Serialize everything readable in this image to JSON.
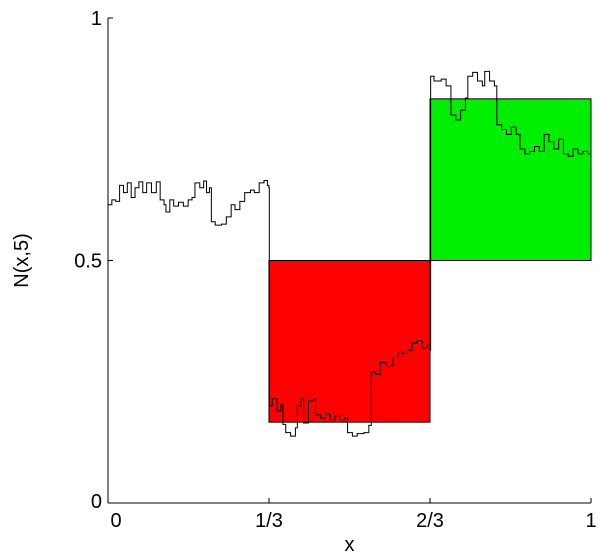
{
  "chart_data": {
    "type": "line",
    "xlabel": "x",
    "ylabel": "N(x,5)",
    "xlim": [
      0,
      1
    ],
    "ylim": [
      0,
      1
    ],
    "xticks": [
      {
        "value": 0,
        "label": "0"
      },
      {
        "value": 0.3333,
        "label": "1/3"
      },
      {
        "value": 0.6667,
        "label": "2/3"
      },
      {
        "value": 1,
        "label": "1"
      }
    ],
    "yticks": [
      {
        "value": 0,
        "label": "0"
      },
      {
        "value": 0.5,
        "label": "0.5"
      },
      {
        "value": 1,
        "label": "1"
      }
    ],
    "grid": false,
    "rectangles": [
      {
        "x0": 0.3333,
        "x1": 0.6667,
        "y0": 0.1667,
        "y1": 0.5,
        "color": "#ff0000"
      },
      {
        "x0": 0.6667,
        "x1": 1.0,
        "y0": 0.5,
        "y1": 0.8333,
        "color": "#00ee00"
      }
    ],
    "series": [
      {
        "color": "#000000",
        "points": [
          [
            0.0,
            0.615
          ],
          [
            0.008,
            0.625
          ],
          [
            0.016,
            0.622
          ],
          [
            0.024,
            0.655
          ],
          [
            0.032,
            0.64
          ],
          [
            0.04,
            0.66
          ],
          [
            0.048,
            0.63
          ],
          [
            0.056,
            0.65
          ],
          [
            0.064,
            0.662
          ],
          [
            0.072,
            0.64
          ],
          [
            0.08,
            0.66
          ],
          [
            0.09,
            0.64
          ],
          [
            0.1,
            0.662
          ],
          [
            0.108,
            0.625
          ],
          [
            0.116,
            0.615
          ],
          [
            0.12,
            0.6
          ],
          [
            0.128,
            0.625
          ],
          [
            0.136,
            0.612
          ],
          [
            0.146,
            0.62
          ],
          [
            0.156,
            0.612
          ],
          [
            0.166,
            0.625
          ],
          [
            0.174,
            0.63
          ],
          [
            0.18,
            0.66
          ],
          [
            0.19,
            0.65
          ],
          [
            0.198,
            0.664
          ],
          [
            0.204,
            0.64
          ],
          [
            0.21,
            0.65
          ],
          [
            0.214,
            0.58
          ],
          [
            0.222,
            0.573
          ],
          [
            0.235,
            0.575
          ],
          [
            0.245,
            0.59
          ],
          [
            0.255,
            0.615
          ],
          [
            0.263,
            0.605
          ],
          [
            0.273,
            0.622
          ],
          [
            0.283,
            0.64
          ],
          [
            0.295,
            0.645
          ],
          [
            0.303,
            0.64
          ],
          [
            0.313,
            0.66
          ],
          [
            0.323,
            0.665
          ],
          [
            0.33,
            0.655
          ],
          [
            0.333,
            0.65
          ],
          [
            0.334,
            0.2
          ],
          [
            0.34,
            0.215
          ],
          [
            0.35,
            0.19
          ],
          [
            0.358,
            0.205
          ],
          [
            0.362,
            0.162
          ],
          [
            0.368,
            0.145
          ],
          [
            0.378,
            0.138
          ],
          [
            0.388,
            0.155
          ],
          [
            0.392,
            0.2
          ],
          [
            0.4,
            0.215
          ],
          [
            0.405,
            0.165
          ],
          [
            0.415,
            0.21
          ],
          [
            0.425,
            0.215
          ],
          [
            0.43,
            0.182
          ],
          [
            0.44,
            0.175
          ],
          [
            0.45,
            0.183
          ],
          [
            0.46,
            0.172
          ],
          [
            0.47,
            0.18
          ],
          [
            0.48,
            0.172
          ],
          [
            0.49,
            0.175
          ],
          [
            0.496,
            0.145
          ],
          [
            0.506,
            0.138
          ],
          [
            0.516,
            0.143
          ],
          [
            0.53,
            0.145
          ],
          [
            0.54,
            0.16
          ],
          [
            0.545,
            0.27
          ],
          [
            0.555,
            0.265
          ],
          [
            0.563,
            0.29
          ],
          [
            0.575,
            0.283
          ],
          [
            0.59,
            0.3
          ],
          [
            0.6,
            0.312
          ],
          [
            0.61,
            0.308
          ],
          [
            0.62,
            0.315
          ],
          [
            0.63,
            0.33
          ],
          [
            0.64,
            0.335
          ],
          [
            0.65,
            0.32
          ],
          [
            0.66,
            0.325
          ],
          [
            0.666,
            0.315
          ],
          [
            0.667,
            0.315
          ],
          [
            0.668,
            0.88
          ],
          [
            0.675,
            0.87
          ],
          [
            0.69,
            0.874
          ],
          [
            0.7,
            0.86
          ],
          [
            0.71,
            0.8
          ],
          [
            0.72,
            0.79
          ],
          [
            0.73,
            0.81
          ],
          [
            0.74,
            0.835
          ],
          [
            0.745,
            0.88
          ],
          [
            0.755,
            0.888
          ],
          [
            0.765,
            0.87
          ],
          [
            0.775,
            0.86
          ],
          [
            0.78,
            0.89
          ],
          [
            0.79,
            0.87
          ],
          [
            0.8,
            0.86
          ],
          [
            0.805,
            0.78
          ],
          [
            0.815,
            0.77
          ],
          [
            0.825,
            0.76
          ],
          [
            0.835,
            0.775
          ],
          [
            0.845,
            0.76
          ],
          [
            0.853,
            0.73
          ],
          [
            0.863,
            0.72
          ],
          [
            0.873,
            0.725
          ],
          [
            0.883,
            0.735
          ],
          [
            0.893,
            0.725
          ],
          [
            0.903,
            0.76
          ],
          [
            0.913,
            0.745
          ],
          [
            0.923,
            0.73
          ],
          [
            0.933,
            0.75
          ],
          [
            0.943,
            0.72
          ],
          [
            0.953,
            0.715
          ],
          [
            0.963,
            0.73
          ],
          [
            0.973,
            0.72
          ],
          [
            0.983,
            0.725
          ],
          [
            0.993,
            0.72
          ],
          [
            1.0,
            0.72
          ]
        ]
      }
    ]
  }
}
